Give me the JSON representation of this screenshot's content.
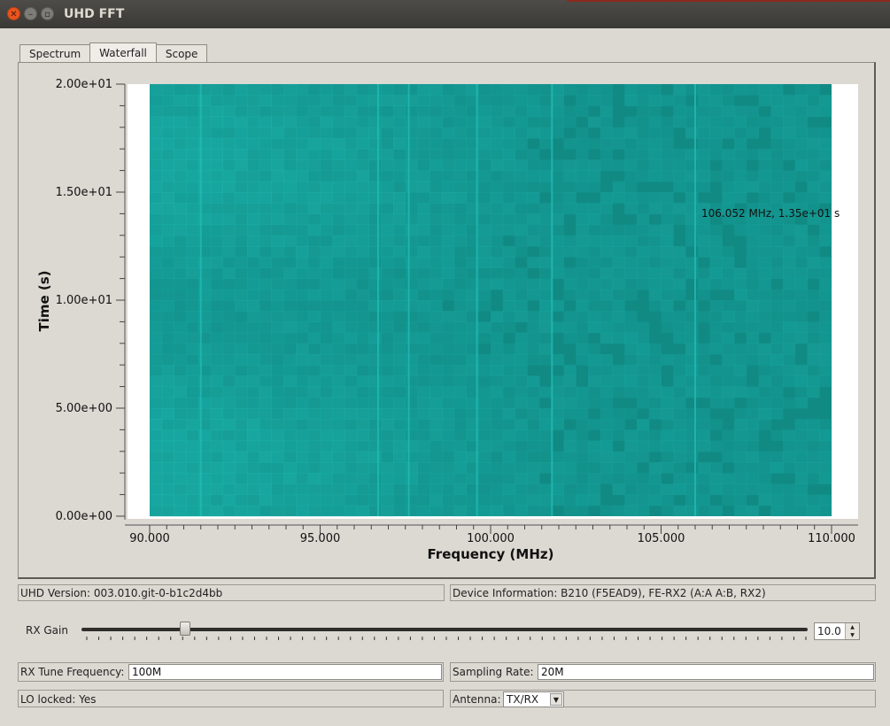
{
  "window": {
    "title": "UHD FFT"
  },
  "tabs": [
    {
      "label": "Spectrum",
      "active": false
    },
    {
      "label": "Waterfall",
      "active": true
    },
    {
      "label": "Scope",
      "active": false
    }
  ],
  "chart_data": {
    "type": "heatmap",
    "xlabel": "Frequency (MHz)",
    "ylabel": "Time (s)",
    "xlim": [
      90,
      110
    ],
    "ylim": [
      0,
      20
    ],
    "x_ticks": [
      {
        "value": 90,
        "label": "90.000"
      },
      {
        "value": 95,
        "label": "95.000"
      },
      {
        "value": 100,
        "label": "100.000"
      },
      {
        "value": 105,
        "label": "105.000"
      },
      {
        "value": 110,
        "label": "110.000"
      }
    ],
    "y_ticks": [
      {
        "value": 0,
        "label": "0.00e+00"
      },
      {
        "value": 5,
        "label": "5.00e+00"
      },
      {
        "value": 10,
        "label": "1.00e+01"
      },
      {
        "value": 15,
        "label": "1.50e+01"
      },
      {
        "value": 20,
        "label": "2.00e+01"
      }
    ],
    "signal_lines_mhz": [
      91.5,
      96.7,
      97.6,
      99.6,
      101.8,
      106.0
    ],
    "cursor_readout": "106.052 MHz, 1.35e+01 s",
    "colors": {
      "base": "#118a84",
      "bright": "#1fbfb8",
      "background": "#ffffff"
    }
  },
  "status": {
    "uhd_version": "UHD Version: 003.010.git-0-b1c2d4bb",
    "device_info": "Device Information: B210 (F5EAD9), FE-RX2 (A:A A:B, RX2)"
  },
  "gain": {
    "label": "RX Gain",
    "value": "10.0",
    "fraction": 0.137
  },
  "tune": {
    "label": "RX Tune Frequency:",
    "value": "100M"
  },
  "sampling": {
    "label": "Sampling Rate:",
    "value": "20M"
  },
  "lo": {
    "text": "LO locked: Yes"
  },
  "antenna": {
    "label": "Antenna:",
    "value": "TX/RX"
  }
}
